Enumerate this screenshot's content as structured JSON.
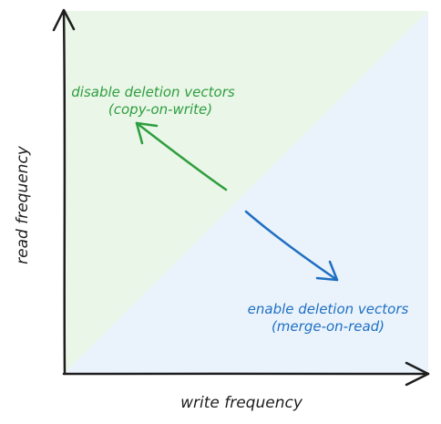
{
  "axes": {
    "x_label": "write frequency",
    "y_label": "read frequency"
  },
  "regions": {
    "upper": {
      "line1": "disable deletion vectors",
      "line2": "(copy-on-write)",
      "color": "#2e9e3e",
      "fill": "#eaf6e8"
    },
    "lower": {
      "line1": "enable deletion vectors",
      "line2": "(merge-on-read)",
      "color": "#1f6fc2",
      "fill": "#eaf3fc"
    }
  },
  "colors": {
    "axis": "#1e1e1e"
  }
}
